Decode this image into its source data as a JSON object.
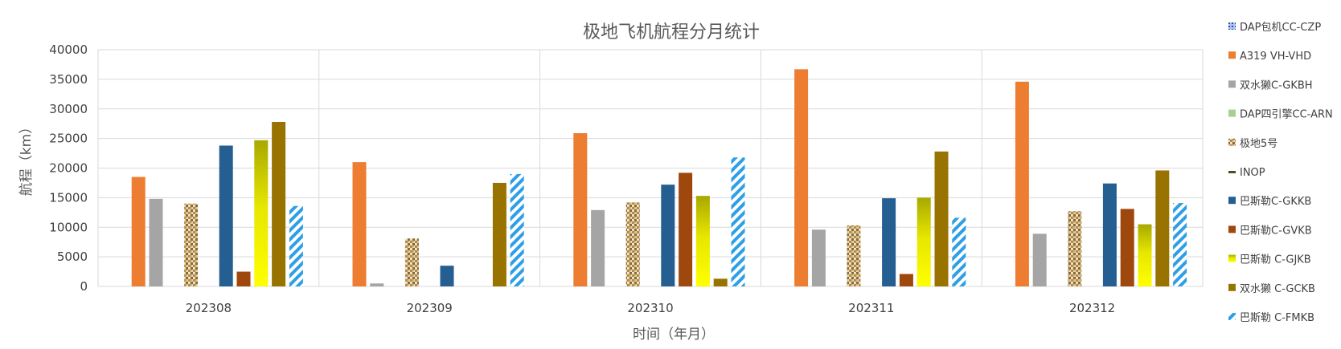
{
  "chart_data": {
    "type": "bar",
    "title": "极地飞机航程分月统计",
    "xlabel": "时间（年月）",
    "ylabel": "航程（km）",
    "ylim": [
      0,
      40000
    ],
    "yticks": [
      0,
      5000,
      10000,
      15000,
      20000,
      25000,
      30000,
      35000,
      40000
    ],
    "categories": [
      "202308",
      "202309",
      "202310",
      "202311",
      "202312"
    ],
    "grid": true,
    "legend_position": "right",
    "series": [
      {
        "name": "DAP包机CC-CZP",
        "color": "#4472c4",
        "pattern": "small-blue-pattern",
        "values": [
          0,
          0,
          0,
          0,
          0
        ]
      },
      {
        "name": "A319 VH-VHD",
        "color": "#ed7d31",
        "pattern": "solid",
        "values": [
          18500,
          21000,
          25900,
          36700,
          34600
        ]
      },
      {
        "name": "双水獭C-GKBH",
        "color": "#a5a5a5",
        "pattern": "solid",
        "values": [
          14800,
          500,
          12900,
          9600,
          8900
        ]
      },
      {
        "name": "DAP四引擎CC-ARN",
        "color": "#a9d18e",
        "pattern": "solid",
        "values": [
          0,
          0,
          0,
          0,
          0
        ]
      },
      {
        "name": "极地5号",
        "color": "#c9a46b",
        "pattern": "burlap-texture",
        "values": [
          14000,
          8100,
          14200,
          10300,
          12700
        ]
      },
      {
        "name": "INOP",
        "color": "#375623",
        "pattern": "solid",
        "values": [
          0,
          0,
          0,
          0,
          0
        ]
      },
      {
        "name": "巴斯勒C-GKKB",
        "color": "#255e91",
        "pattern": "solid",
        "values": [
          23800,
          3500,
          17200,
          14900,
          17400
        ]
      },
      {
        "name": "巴斯勒C-GVKB",
        "color": "#9e480e",
        "pattern": "solid",
        "values": [
          2500,
          0,
          19200,
          2100,
          13100
        ]
      },
      {
        "name": "巴斯勒 C-GJKB",
        "color": "#ffff00",
        "pattern": "gradient-yellow",
        "values": [
          24700,
          0,
          15300,
          15000,
          10500
        ]
      },
      {
        "name": "双水獭 C-GCKB",
        "color": "#997300",
        "pattern": "solid",
        "values": [
          27800,
          17500,
          1300,
          22800,
          19600
        ]
      },
      {
        "name": "巴斯勒 C-FMKB",
        "color": "#2e9fe6",
        "pattern": "diagonal-hatch",
        "values": [
          13600,
          19000,
          21800,
          11600,
          14100
        ]
      }
    ]
  }
}
